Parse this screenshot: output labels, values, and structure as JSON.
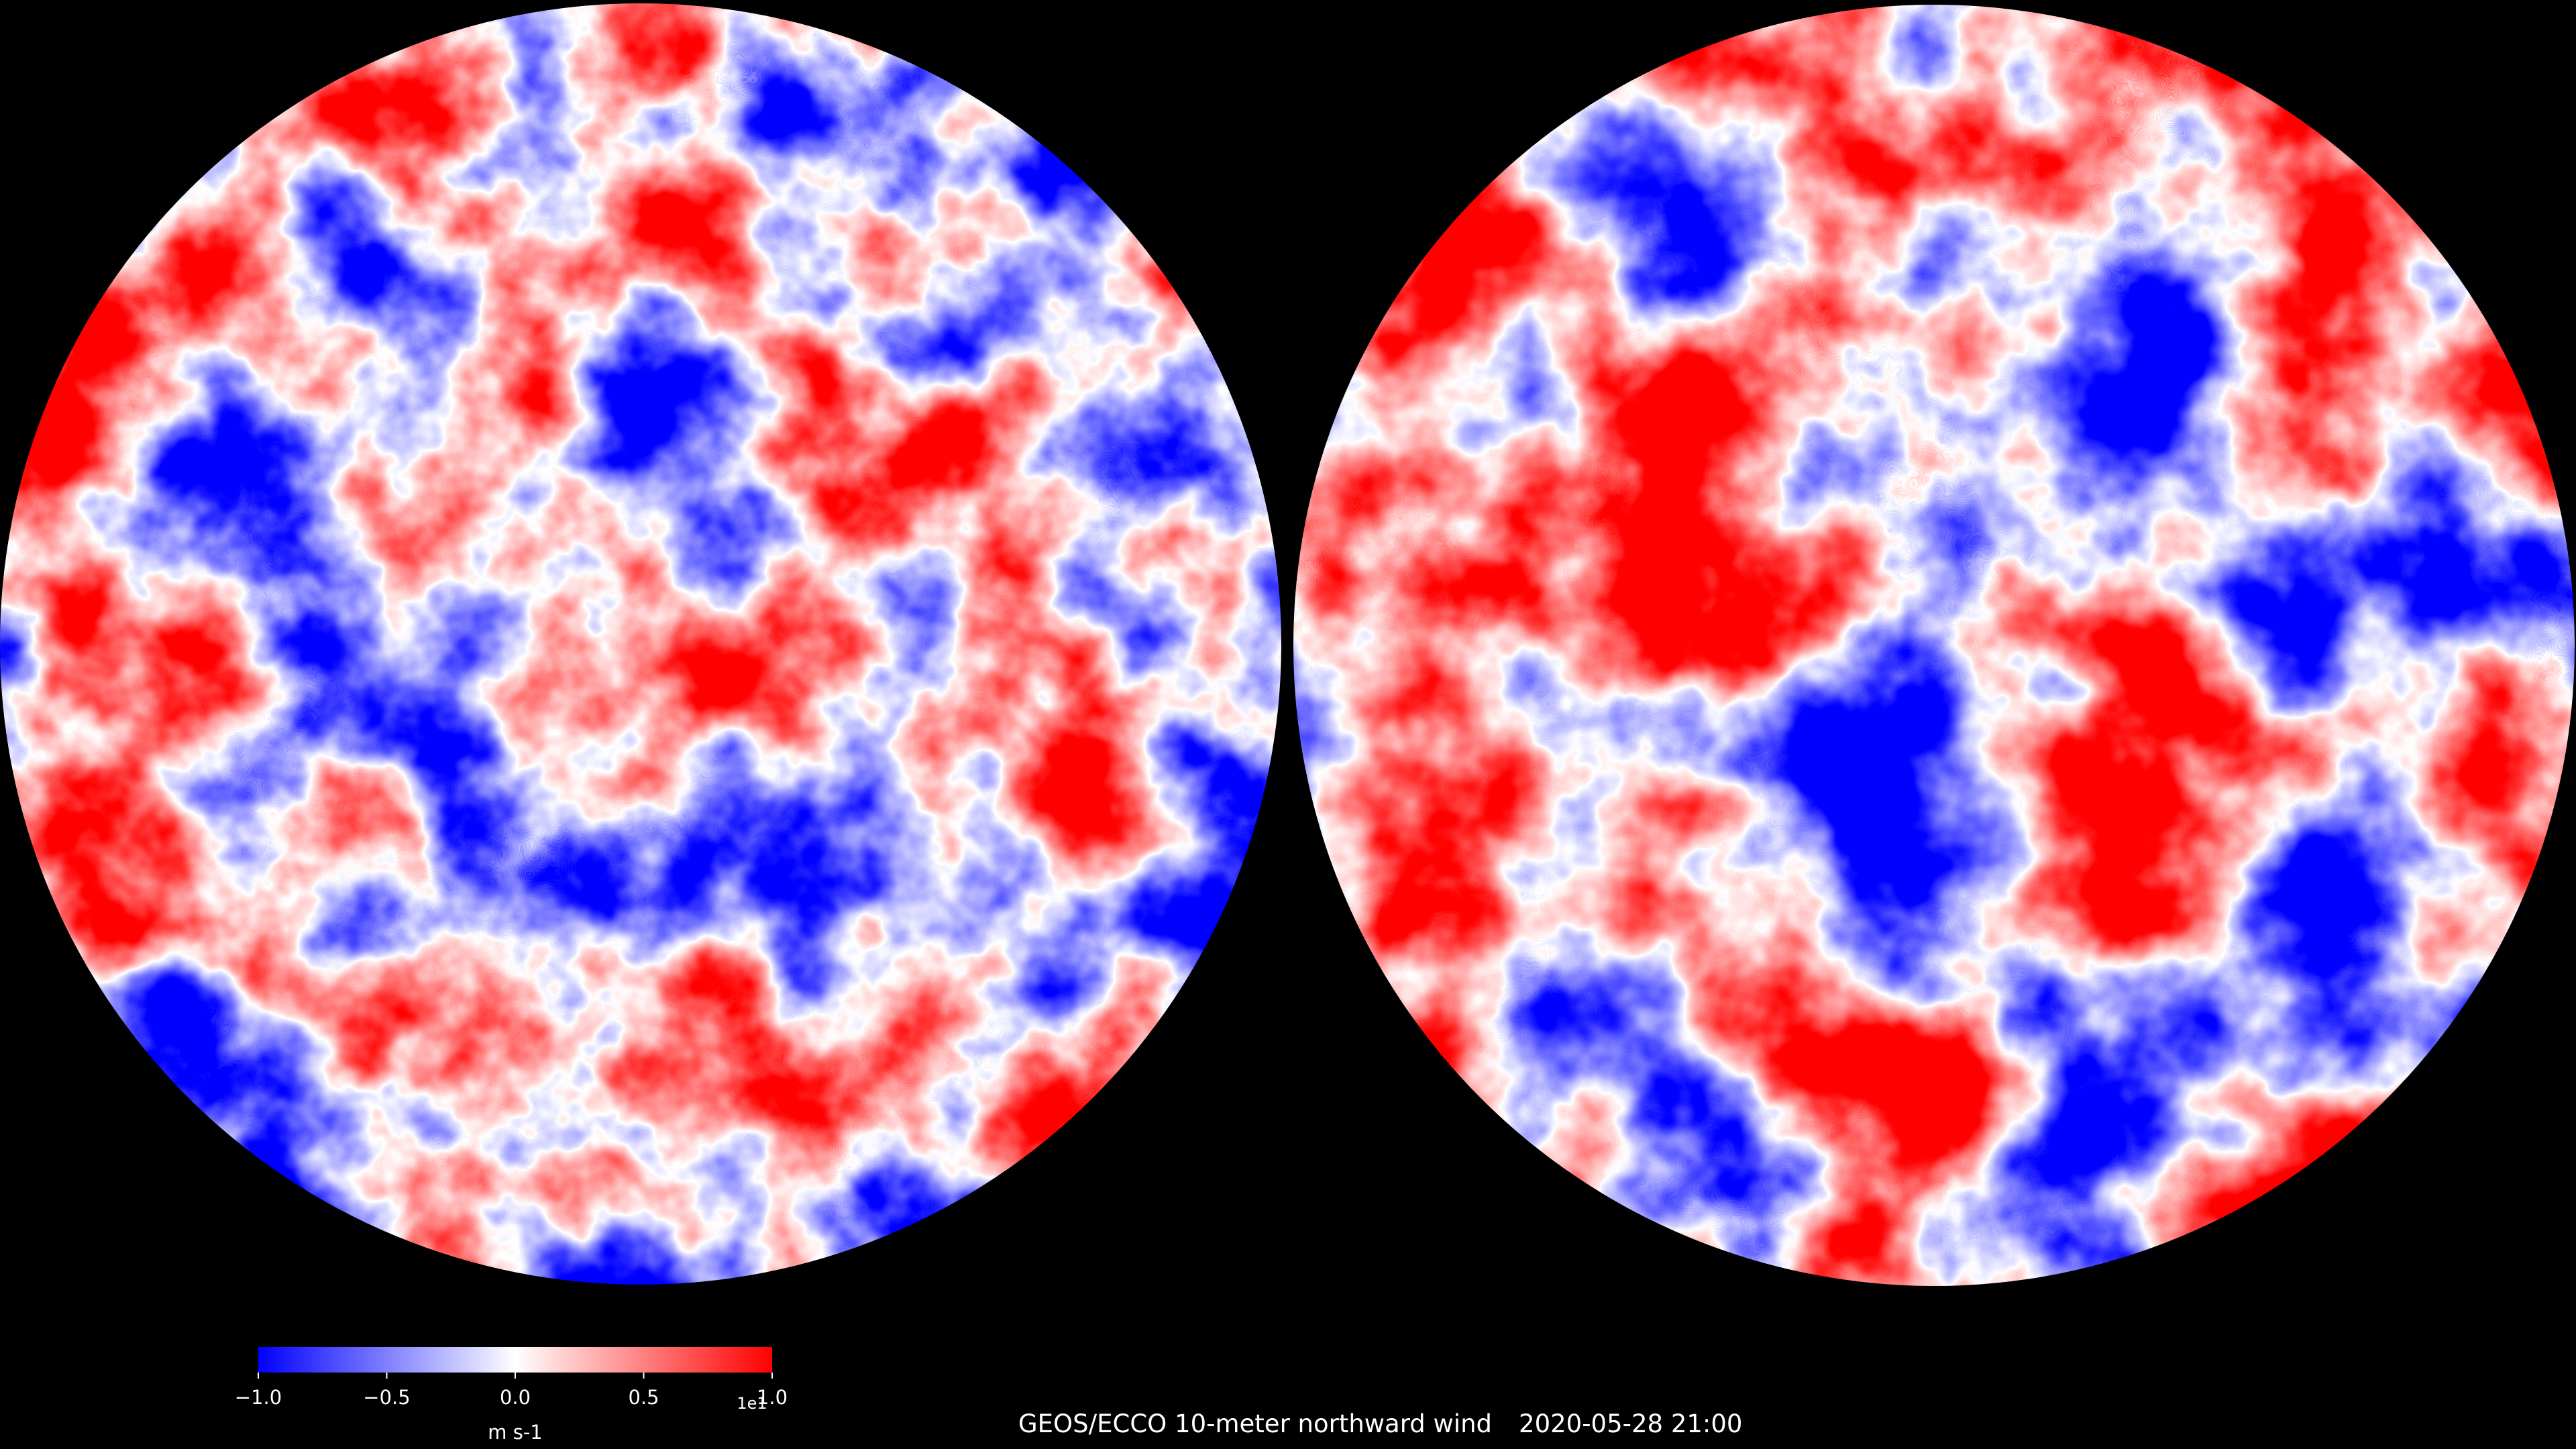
{
  "title": "GEOS/ECCO 10-meter northward wind",
  "timestamp": "2020-05-28 21:00",
  "colorbar": {
    "lim": [
      -1,
      1
    ],
    "ticks": [
      {
        "value": -1,
        "label": "−1.0"
      },
      {
        "value": -0.5,
        "label": "−0.5"
      },
      {
        "value": 0,
        "label": "0.0"
      },
      0.5,
      {
        "value": 1,
        "label": "1.0"
      }
    ],
    "label": "m s-1",
    "offset_label": "1e1",
    "colors": [
      "#0000ff",
      "#ffffff",
      "#ff0000"
    ]
  }
}
